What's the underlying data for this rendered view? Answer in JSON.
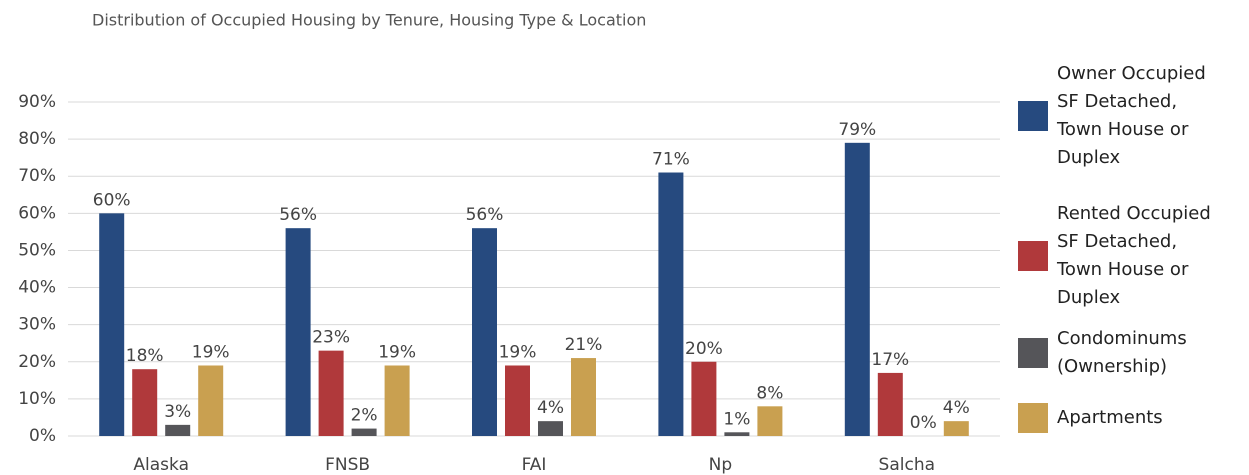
{
  "chart_data": {
    "type": "bar",
    "title": "Distribution of Occupied Housing by Tenure, Housing Type & Location",
    "categories": [
      "Alaska",
      "FNSB",
      "FAI",
      "Np",
      "Salcha"
    ],
    "series": [
      {
        "name": "Owner Occupied SF Detached, Town House or Duplex",
        "color": "#264a7f",
        "values": [
          60,
          56,
          56,
          71,
          79
        ],
        "value_labels": [
          "60%",
          "56%",
          "56%",
          "71%",
          "79%"
        ]
      },
      {
        "name": "Rented Occupied SF Detached, Town House or Duplex",
        "color": "#b0393b",
        "values": [
          18,
          23,
          19,
          20,
          17
        ],
        "value_labels": [
          "18%",
          "23%",
          "19%",
          "20%",
          "17%"
        ]
      },
      {
        "name": "Condominums (Ownership)",
        "color": "#555559",
        "values": [
          3,
          2,
          4,
          1,
          0
        ],
        "value_labels": [
          "3%",
          "2%",
          "4%",
          "1%",
          "0%"
        ]
      },
      {
        "name": "Apartments",
        "color": "#c9a050",
        "values": [
          19,
          19,
          21,
          8,
          4
        ],
        "value_labels": [
          "19%",
          "19%",
          "21%",
          "8%",
          "4%"
        ]
      }
    ],
    "ylim": [
      0,
      90
    ],
    "yticks": [
      {
        "value": 0,
        "label": "0%"
      },
      {
        "value": 10,
        "label": "10%"
      },
      {
        "value": 20,
        "label": "20%"
      },
      {
        "value": 30,
        "label": "30%"
      },
      {
        "value": 40,
        "label": "40%"
      },
      {
        "value": 50,
        "label": "50%"
      },
      {
        "value": 60,
        "label": "60%"
      },
      {
        "value": 70,
        "label": "70%"
      },
      {
        "value": 80,
        "label": "80%"
      },
      {
        "value": 90,
        "label": "90%"
      }
    ],
    "grid": true,
    "legend": "right"
  }
}
